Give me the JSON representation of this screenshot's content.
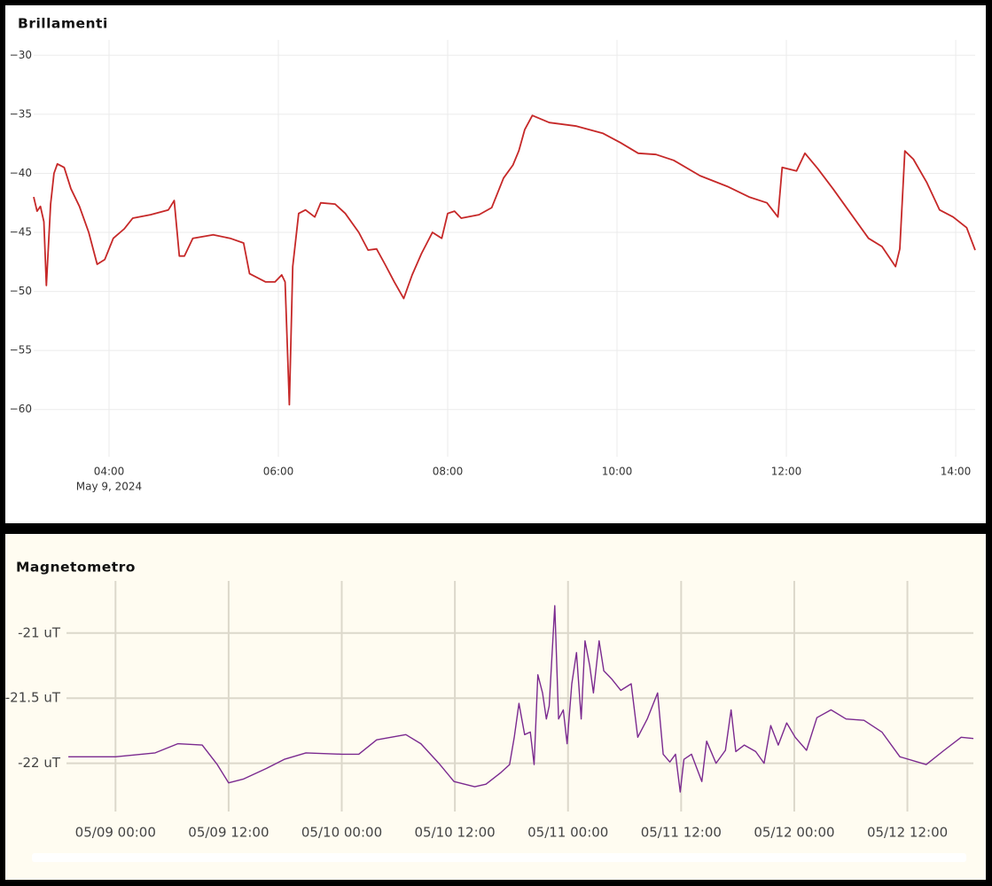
{
  "chart_data": [
    {
      "type": "line",
      "title": "Brillamenti",
      "color": "#c62828",
      "grid": true,
      "date_label": "May 9, 2024",
      "x": [
        3.11,
        3.15,
        3.19,
        3.23,
        3.26,
        3.31,
        3.35,
        3.39,
        3.47,
        3.55,
        3.65,
        3.76,
        3.86,
        3.95,
        4.05,
        4.18,
        4.28,
        4.49,
        4.7,
        4.77,
        4.83,
        4.89,
        4.99,
        5.23,
        5.43,
        5.59,
        5.66,
        5.85,
        5.96,
        6.04,
        6.08,
        6.13,
        6.17,
        6.24,
        6.32,
        6.43,
        6.5,
        6.67,
        6.79,
        6.95,
        7.06,
        7.16,
        7.26,
        7.37,
        7.48,
        7.58,
        7.69,
        7.82,
        7.93,
        8.0,
        8.08,
        8.16,
        8.37,
        8.52,
        8.66,
        8.77,
        8.84,
        8.91,
        9.0,
        9.2,
        9.52,
        9.83,
        10.04,
        10.25,
        10.46,
        10.67,
        10.98,
        11.3,
        11.56,
        11.77,
        11.9,
        11.95,
        12.12,
        12.22,
        12.37,
        12.55,
        12.76,
        12.97,
        13.13,
        13.29,
        13.34,
        13.4,
        13.5,
        13.66,
        13.81,
        13.97,
        14.13,
        14.23
      ],
      "values": [
        -42.0,
        -43.2,
        -42.8,
        -44.1,
        -49.5,
        -42.6,
        -40.0,
        -39.2,
        -39.5,
        -41.3,
        -42.8,
        -45.0,
        -47.7,
        -47.3,
        -45.5,
        -44.7,
        -43.8,
        -43.5,
        -43.1,
        -42.3,
        -47.0,
        -47.0,
        -45.5,
        -45.2,
        -45.5,
        -45.9,
        -48.5,
        -49.2,
        -49.2,
        -48.6,
        -49.2,
        -59.6,
        -47.9,
        -43.4,
        -43.1,
        -43.7,
        -42.5,
        -42.6,
        -43.4,
        -45.0,
        -46.5,
        -46.4,
        -47.7,
        -49.2,
        -50.6,
        -48.6,
        -46.8,
        -45.0,
        -45.5,
        -43.4,
        -43.2,
        -43.8,
        -43.5,
        -42.9,
        -40.4,
        -39.3,
        -38.1,
        -36.3,
        -35.1,
        -35.7,
        -36.0,
        -36.6,
        -37.4,
        -38.3,
        -38.4,
        -38.9,
        -40.2,
        -41.1,
        -42.0,
        -42.5,
        -43.7,
        -39.5,
        -39.8,
        -38.3,
        -39.6,
        -41.3,
        -43.4,
        -45.5,
        -46.2,
        -47.9,
        -46.4,
        -38.1,
        -38.8,
        -40.8,
        -43.1,
        -43.7,
        -44.6,
        -46.5
      ],
      "xlim": [
        3.11,
        14.23
      ],
      "xticks": [
        {
          "value": 4,
          "label": "04:00"
        },
        {
          "value": 6,
          "label": "06:00"
        },
        {
          "value": 8,
          "label": "08:00"
        },
        {
          "value": 10,
          "label": "10:00"
        },
        {
          "value": 12,
          "label": "12:00"
        },
        {
          "value": 14,
          "label": "14:00"
        }
      ],
      "ylim": [
        -64,
        -28.7
      ],
      "yticks": [
        {
          "value": -30,
          "label": "−30"
        },
        {
          "value": -35,
          "label": "−35"
        },
        {
          "value": -40,
          "label": "−40"
        },
        {
          "value": -45,
          "label": "−45"
        },
        {
          "value": -50,
          "label": "−50"
        },
        {
          "value": -55,
          "label": "−55"
        },
        {
          "value": -60,
          "label": "−60"
        }
      ]
    },
    {
      "type": "line",
      "title": "Magnetometro",
      "color": "#7b2a8f",
      "grid": true,
      "x": [
        -5.0,
        0,
        4.2,
        6.6,
        9.2,
        10.8,
        12.0,
        13.6,
        16.0,
        17.9,
        20.2,
        24.0,
        25.8,
        27.7,
        30.8,
        32.4,
        34.3,
        35.9,
        38.1,
        39.3,
        40.9,
        41.8,
        42.3,
        42.8,
        43.4,
        44.0,
        44.4,
        44.8,
        45.3,
        45.7,
        46.0,
        46.6,
        47.0,
        47.5,
        47.9,
        48.4,
        48.9,
        49.4,
        49.8,
        50.3,
        50.7,
        51.3,
        51.8,
        52.6,
        53.6,
        54.7,
        55.4,
        56.4,
        57.5,
        58.1,
        58.8,
        59.4,
        59.9,
        60.3,
        61.1,
        62.2,
        62.7,
        63.7,
        64.7,
        65.3,
        65.8,
        66.7,
        67.9,
        68.8,
        69.5,
        70.3,
        71.2,
        72.1,
        73.3,
        74.4,
        75.9,
        77.5,
        79.4,
        81.3,
        83.2,
        86.0,
        87.9,
        89.7,
        91.0
      ],
      "values": [
        -21.95,
        -21.95,
        -21.92,
        -21.85,
        -21.86,
        -22.01,
        -22.15,
        -22.12,
        -22.04,
        -21.97,
        -21.92,
        -21.93,
        -21.93,
        -21.82,
        -21.78,
        -21.85,
        -22.0,
        -22.14,
        -22.18,
        -22.16,
        -22.07,
        -22.01,
        -21.8,
        -21.54,
        -21.78,
        -21.76,
        -22.01,
        -21.32,
        -21.46,
        -21.66,
        -21.56,
        -20.79,
        -21.66,
        -21.59,
        -21.85,
        -21.39,
        -21.15,
        -21.66,
        -21.06,
        -21.25,
        -21.46,
        -21.06,
        -21.29,
        -21.35,
        -21.44,
        -21.39,
        -21.8,
        -21.66,
        -21.46,
        -21.93,
        -21.99,
        -21.93,
        -22.22,
        -21.97,
        -21.93,
        -22.14,
        -21.83,
        -22.0,
        -21.9,
        -21.59,
        -21.91,
        -21.86,
        -21.91,
        -22.0,
        -21.71,
        -21.86,
        -21.69,
        -21.8,
        -21.9,
        -21.65,
        -21.59,
        -21.66,
        -21.67,
        -21.76,
        -21.95,
        -22.01,
        -21.9,
        -21.8,
        -21.81
      ],
      "xlim": [
        -5.2,
        91
      ],
      "xticks": [
        {
          "value": 0,
          "label": "05/09 00:00"
        },
        {
          "value": 12,
          "label": "05/09 12:00"
        },
        {
          "value": 24,
          "label": "05/10 00:00"
        },
        {
          "value": 36,
          "label": "05/10 12:00"
        },
        {
          "value": 48,
          "label": "05/11 00:00"
        },
        {
          "value": 60,
          "label": "05/11 12:00"
        },
        {
          "value": 72,
          "label": "05/12 00:00"
        },
        {
          "value": 84,
          "label": "05/12 12:00"
        }
      ],
      "ylim": [
        -22.37,
        -20.6
      ],
      "yticks": [
        {
          "value": -21,
          "label": "-21 uT"
        },
        {
          "value": -21.5,
          "label": "-21.5 uT"
        },
        {
          "value": -22,
          "label": "-22 uT"
        }
      ]
    }
  ]
}
